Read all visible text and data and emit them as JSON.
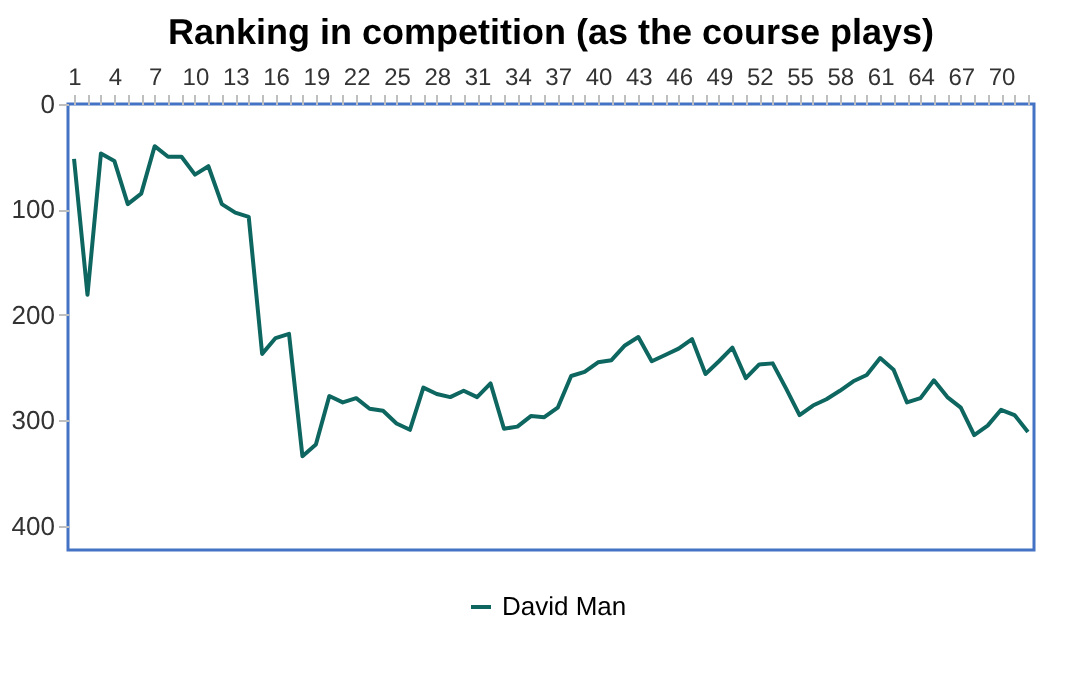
{
  "chart_data": {
    "type": "line",
    "title": "Ranking in competition (as the course plays)",
    "categories": [
      "1",
      null,
      null,
      "4",
      null,
      null,
      "7",
      null,
      null,
      "10",
      null,
      null,
      "13",
      null,
      null,
      "16",
      null,
      null,
      "19",
      null,
      null,
      "22",
      null,
      null,
      "25",
      null,
      null,
      "28",
      null,
      null,
      "31",
      null,
      null,
      "34",
      null,
      null,
      "37",
      null,
      null,
      "40",
      null,
      null,
      "43",
      null,
      null,
      "46",
      null,
      null,
      "49",
      null,
      null,
      "52",
      null,
      null,
      "55",
      null,
      null,
      "58",
      null,
      null,
      "61",
      null,
      null,
      "64",
      null,
      null,
      "67",
      null,
      null,
      "70",
      null,
      null
    ],
    "series": [
      {
        "name": "David Man",
        "color": "#0e6660",
        "values": [
          52,
          181,
          47,
          54,
          95,
          85,
          40,
          50,
          50,
          67,
          59,
          95,
          103,
          107,
          237,
          222,
          218,
          334,
          323,
          277,
          283,
          279,
          289,
          291,
          303,
          309,
          269,
          275,
          278,
          272,
          278,
          265,
          308,
          306,
          296,
          297,
          288,
          258,
          254,
          245,
          243,
          229,
          221,
          244,
          238,
          232,
          223,
          256,
          244,
          231,
          260,
          247,
          246,
          270,
          295,
          286,
          280,
          272,
          263,
          257,
          241,
          252,
          283,
          279,
          262,
          278,
          288,
          314,
          305,
          290,
          295,
          311
        ]
      }
    ],
    "ylim": [
      423,
      0
    ],
    "yticks": [
      0,
      100,
      200,
      300,
      400
    ],
    "grid": false,
    "legend": "bottom",
    "line_style": "solid",
    "marker": "none"
  }
}
